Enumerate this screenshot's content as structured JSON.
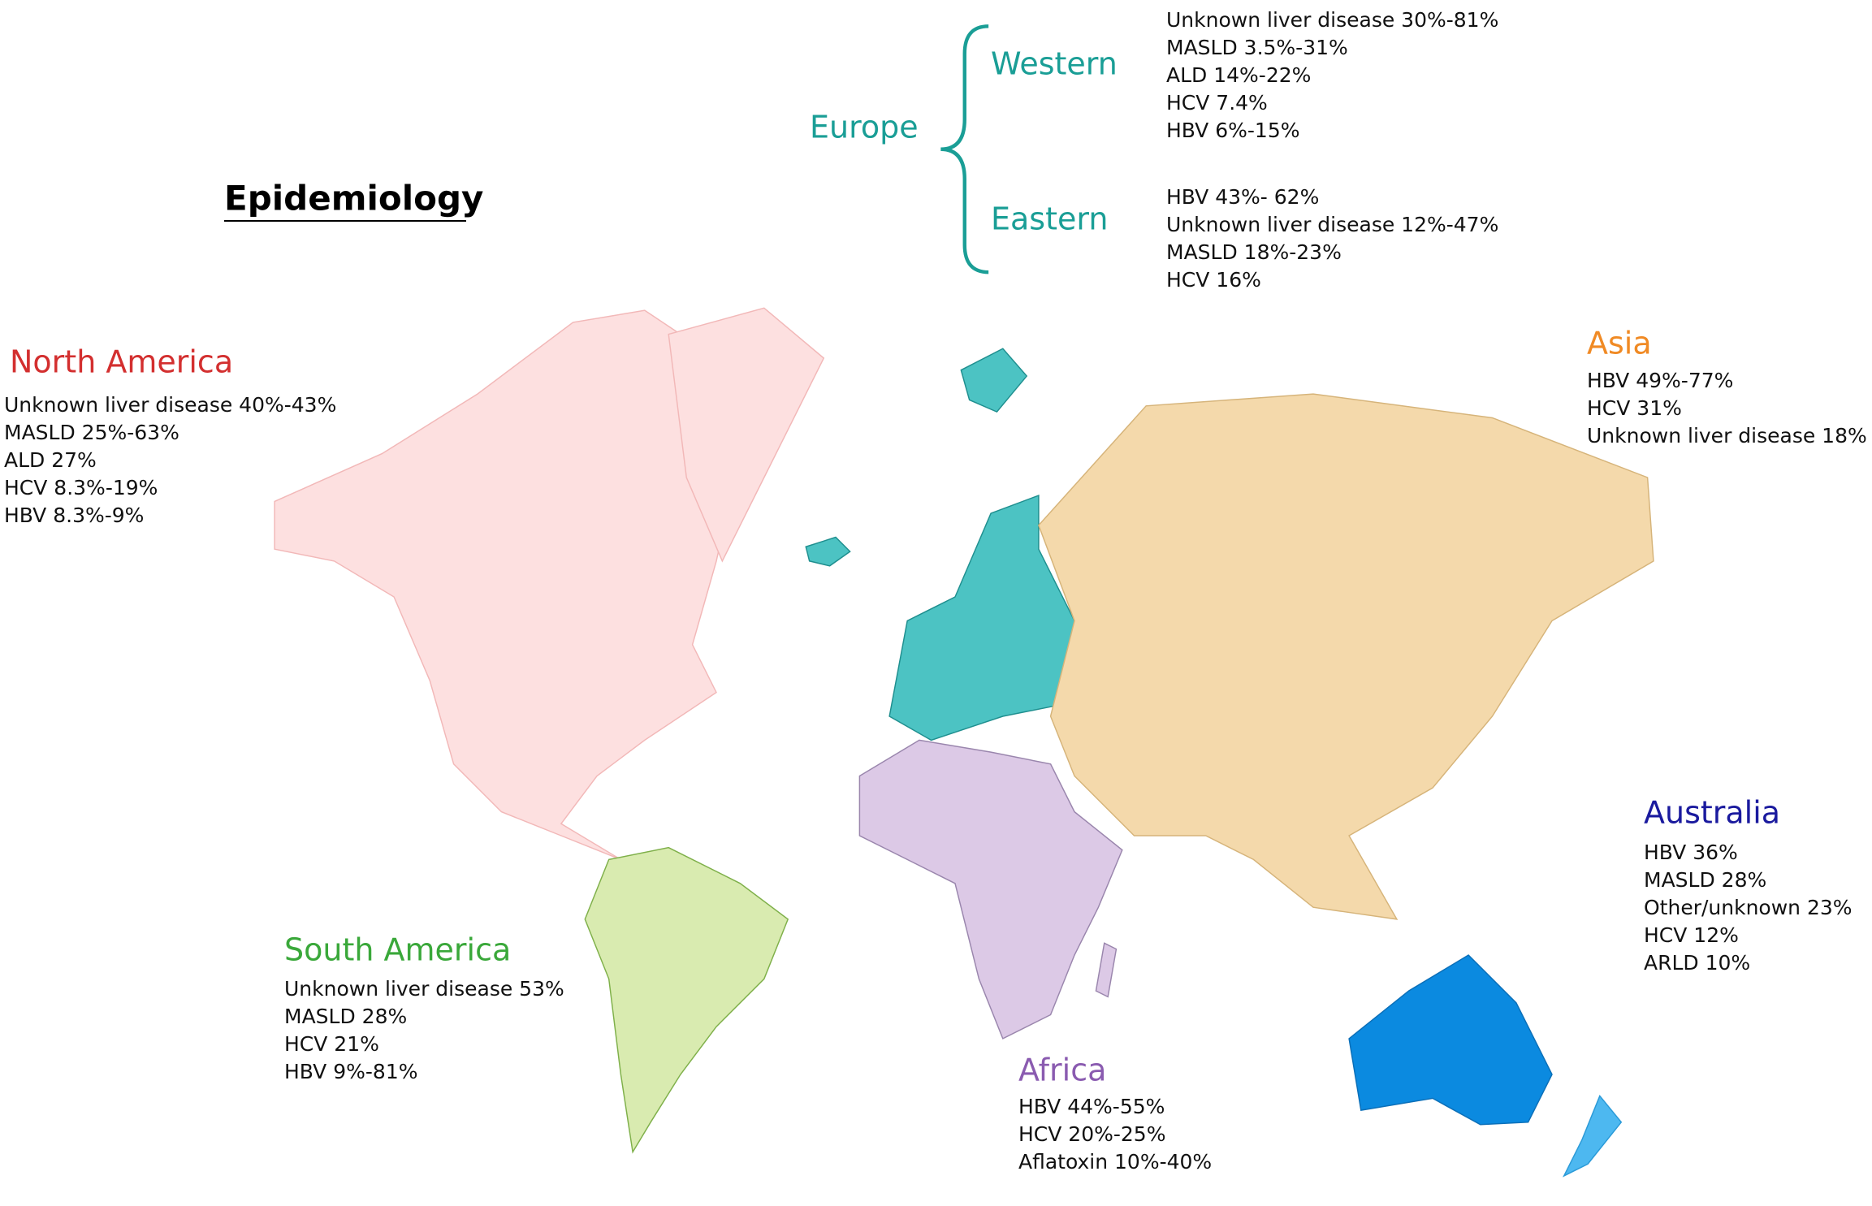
{
  "title": "Epidemiology",
  "regions": [
    {
      "name": "North America",
      "lines": [
        "Unknown liver disease 40%-43%",
        "MASLD 25%-63%",
        "ALD 27%",
        "HCV 8.3%-19%",
        "HBV 8.3%-9%"
      ]
    },
    {
      "name": "South America",
      "lines": [
        "Unknown liver disease 53%",
        "MASLD 28%",
        "HCV 21%",
        "HBV 9%-81%"
      ]
    },
    {
      "name": "Africa",
      "lines": [
        "HBV 44%-55%",
        "HCV 20%-25%",
        "Aflatoxin 10%-40%"
      ]
    },
    {
      "name": "Asia",
      "lines": [
        "HBV 49%-77%",
        "HCV 31%",
        "Unknown liver disease 18%"
      ]
    },
    {
      "name": "Australia",
      "lines": [
        "HBV 36%",
        "MASLD 28%",
        "Other/unknown 23%",
        "HCV 12%",
        "ARLD 10%"
      ]
    }
  ],
  "europe": {
    "name": "Europe",
    "subregions": [
      {
        "name": "Western",
        "lines": [
          "Unknown liver disease 30%-81%",
          "MASLD 3.5%-31%",
          "ALD 14%-22%",
          "HCV 7.4%",
          "HBV 6%-15%"
        ]
      },
      {
        "name": "Eastern",
        "lines": [
          "HBV 43%- 62%",
          "Unknown liver disease 12%-47%",
          "MASLD 18%-23%",
          "HCV 16%"
        ]
      }
    ]
  }
}
